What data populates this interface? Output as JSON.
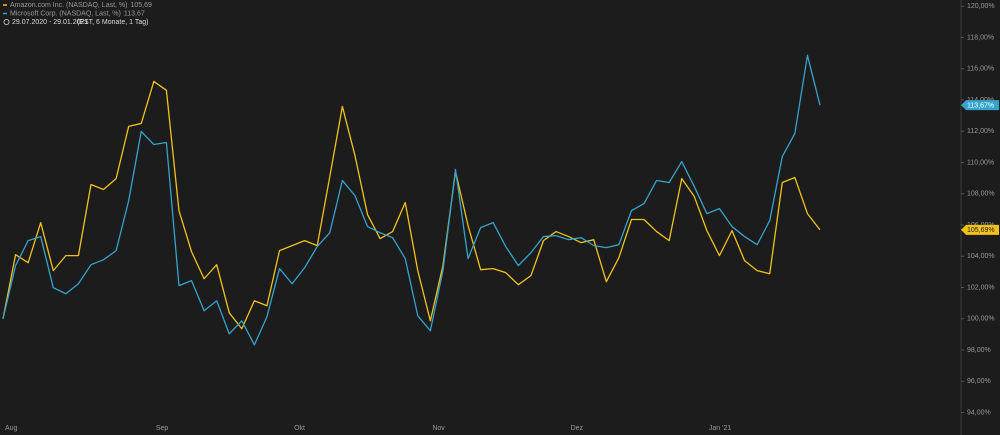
{
  "chart_data": {
    "type": "line",
    "period": "29.07.2020 - 29.01.2021",
    "period_info": "(EST, 6 Monate, 1 Tag)",
    "categories": [
      "Aug",
      null,
      null,
      null,
      null,
      null,
      null,
      null,
      null,
      null,
      null,
      null,
      "Sep",
      null,
      null,
      null,
      null,
      null,
      null,
      null,
      null,
      null,
      null,
      "Okt",
      null,
      null,
      null,
      null,
      null,
      null,
      null,
      null,
      null,
      null,
      "Nov",
      null,
      null,
      null,
      null,
      null,
      null,
      null,
      null,
      null,
      null,
      "Dez",
      null,
      null,
      null,
      null,
      null,
      null,
      null,
      null,
      null,
      null,
      "Jan '21",
      null,
      null,
      null,
      null,
      null,
      null,
      null,
      null,
      null
    ],
    "series": [
      {
        "name": "Amazon.com Inc. (NASDAQ, Last, %)",
        "color": "#f2c21b",
        "last_label": "105,69",
        "tag_label": "105,69%",
        "values": [
          100.0,
          104.1,
          103.59,
          106.15,
          103.08,
          104.04,
          104.04,
          108.59,
          108.27,
          108.97,
          112.31,
          112.5,
          115.19,
          114.62,
          106.92,
          104.29,
          102.56,
          103.46,
          100.38,
          99.36,
          101.15,
          100.83,
          104.36,
          104.68,
          105.0,
          104.68,
          109.1,
          113.59,
          110.45,
          106.67,
          105.13,
          105.58,
          107.44,
          103.08,
          99.87,
          103.4,
          109.42,
          105.96,
          103.14,
          103.21,
          102.95,
          102.18,
          102.76,
          105.0,
          105.58,
          105.26,
          104.87,
          105.06,
          102.37,
          103.91,
          106.35,
          106.35,
          105.58,
          105.0,
          108.97,
          107.82,
          105.64,
          104.04,
          105.64,
          103.72,
          103.08,
          102.88,
          108.72,
          109.04,
          106.73,
          105.69
        ]
      },
      {
        "name": "Microsoft Corp. (NASDAQ, Last, %)",
        "color": "#35a3cc",
        "last_label": "113,67",
        "tag_label": "113,67%",
        "values": [
          100.0,
          103.4,
          105.0,
          105.26,
          101.99,
          101.6,
          102.24,
          103.46,
          103.78,
          104.36,
          107.56,
          111.99,
          111.15,
          111.28,
          102.12,
          102.44,
          100.51,
          101.15,
          99.04,
          99.87,
          98.33,
          100.13,
          103.21,
          102.24,
          103.27,
          104.62,
          105.51,
          108.85,
          107.88,
          105.9,
          105.51,
          105.19,
          103.85,
          100.19,
          99.23,
          103.08,
          109.55,
          103.85,
          105.83,
          106.15,
          104.62,
          103.4,
          104.23,
          105.26,
          105.32,
          105.06,
          105.19,
          104.68,
          104.55,
          104.74,
          106.92,
          107.37,
          108.85,
          108.72,
          110.06,
          108.46,
          106.73,
          107.05,
          105.9,
          105.26,
          104.74,
          106.28,
          110.38,
          111.86,
          116.86,
          113.67
        ]
      }
    ],
    "ylim": [
      93.2,
      120.4
    ],
    "yticks": [
      {
        "value": 94,
        "label": "94,00%"
      },
      {
        "value": 96,
        "label": "96,00%"
      },
      {
        "value": 98,
        "label": "98,00%"
      },
      {
        "value": 100,
        "label": "100,00%"
      },
      {
        "value": 102,
        "label": "102,00%"
      },
      {
        "value": 104,
        "label": "104,00%"
      },
      {
        "value": 106,
        "label": "106,00%"
      },
      {
        "value": 108,
        "label": "108,00%"
      },
      {
        "value": 110,
        "label": "110,00%"
      },
      {
        "value": 112,
        "label": "112,00%"
      },
      {
        "value": 114,
        "label": "114,00%"
      },
      {
        "value": 116,
        "label": "116,00%"
      },
      {
        "value": 118,
        "label": "118,00%"
      },
      {
        "value": 120,
        "label": "120,00%"
      }
    ],
    "grid": false
  }
}
